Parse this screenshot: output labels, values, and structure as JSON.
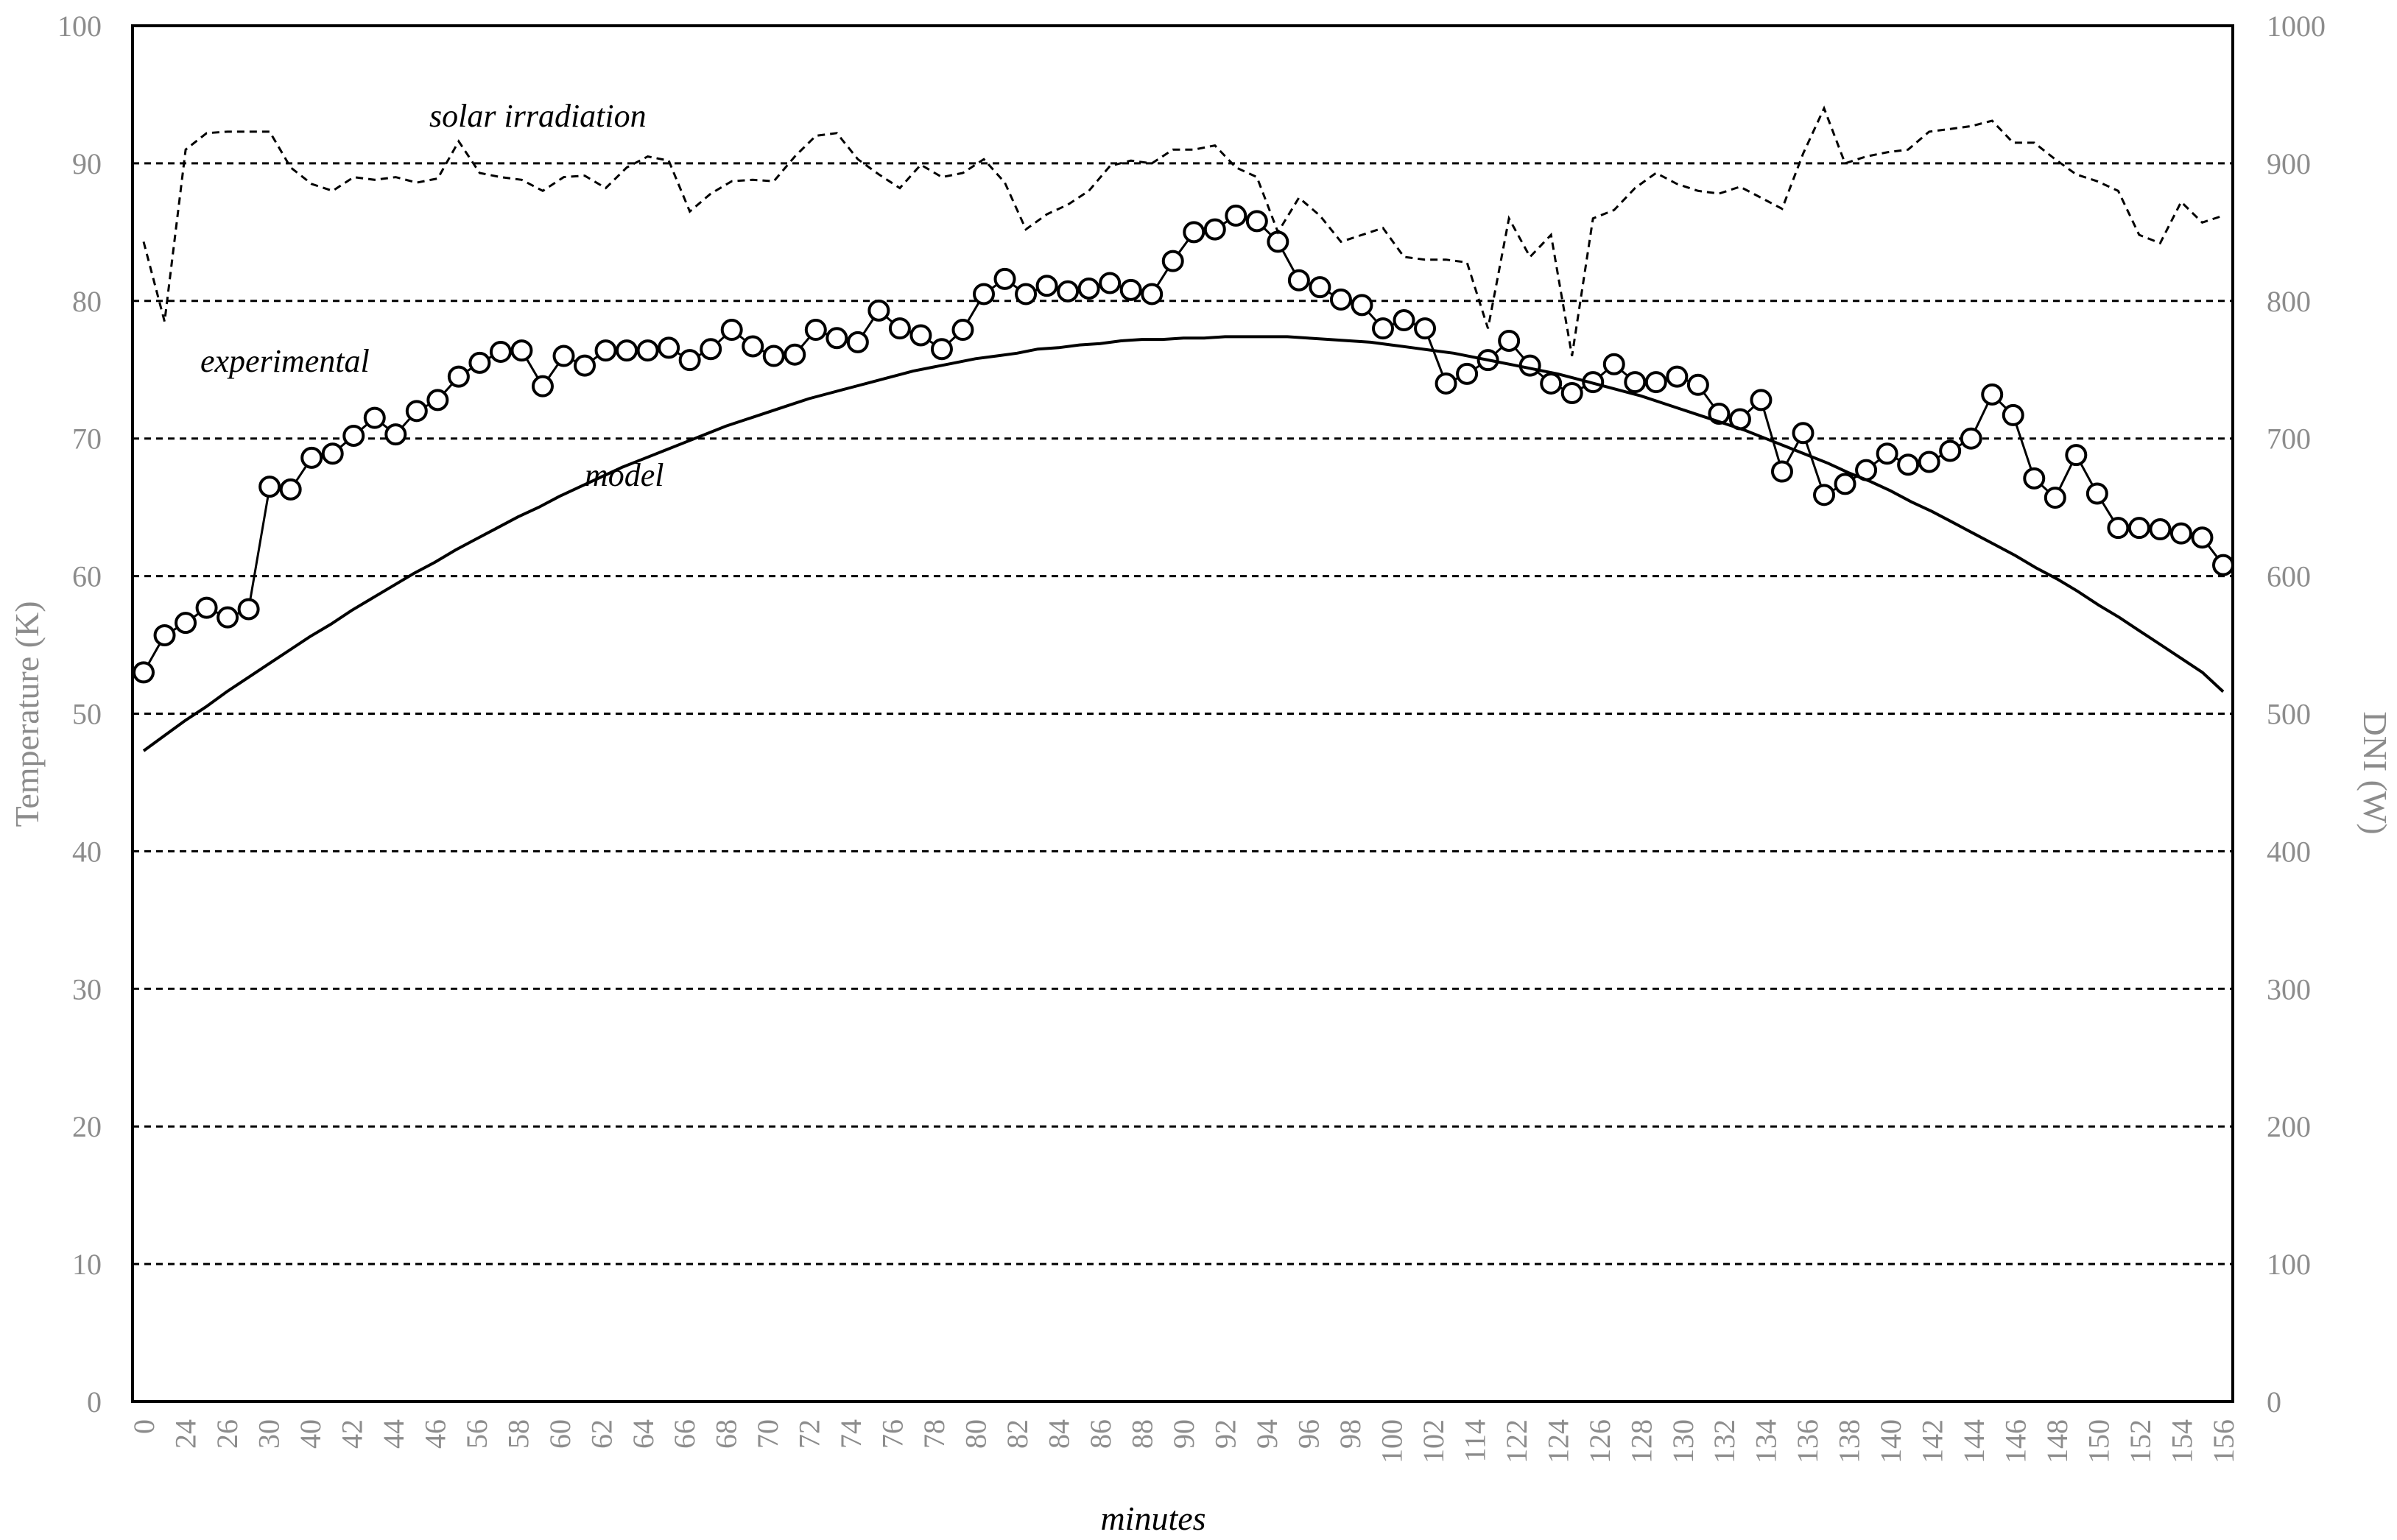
{
  "chart_data": {
    "type": "line",
    "title": "",
    "xlabel": "minutes",
    "ylabel": "Temperature (K)",
    "y2label": "DNI (W)",
    "ylim": [
      0,
      100
    ],
    "y2lim": [
      0,
      1000
    ],
    "yticks": [
      "0",
      "10",
      "20",
      "30",
      "40",
      "50",
      "60",
      "70",
      "80",
      "90",
      "100"
    ],
    "y2ticks": [
      "0",
      "100",
      "200",
      "300",
      "400",
      "500",
      "600",
      "700",
      "800",
      "900",
      "1000"
    ],
    "xtick_labels": [
      "0",
      "24",
      "26",
      "30",
      "40",
      "42",
      "44",
      "46",
      "56",
      "58",
      "60",
      "62",
      "64",
      "66",
      "68",
      "70",
      "72",
      "74",
      "76",
      "78",
      "80",
      "82",
      "84",
      "86",
      "88",
      "90",
      "92",
      "94",
      "96",
      "98",
      "100",
      "102",
      "114",
      "122",
      "124",
      "126",
      "128",
      "130",
      "132",
      "134",
      "136",
      "138",
      "140",
      "142",
      "144",
      "146",
      "148",
      "150",
      "152",
      "154",
      "156"
    ],
    "grid": "horizontal dashed",
    "annotations": {
      "solar": "solar irradiation",
      "experimental": "experimental",
      "model": "model"
    },
    "colors": {
      "lines": "#000000",
      "tick_text": "#8c8c8c"
    },
    "series": [
      {
        "name": "experimental",
        "axis": "left",
        "style": "solid line with circle markers",
        "values": [
          53.0,
          55.7,
          56.6,
          57.7,
          57.0,
          57.6,
          66.5,
          66.3,
          68.6,
          68.9,
          70.2,
          71.5,
          70.3,
          72.0,
          72.8,
          74.5,
          75.5,
          76.3,
          76.4,
          73.8,
          76.0,
          75.3,
          76.4,
          76.4,
          76.4,
          76.6,
          75.7,
          76.5,
          77.9,
          76.7,
          76.0,
          76.1,
          77.9,
          77.3,
          77.0,
          79.3,
          78.0,
          77.5,
          76.5,
          77.9,
          80.5,
          81.6,
          80.5,
          81.1,
          80.7,
          80.9,
          81.3,
          80.8,
          80.5,
          82.9,
          85.0,
          85.2,
          86.2,
          85.8,
          84.3,
          81.5,
          81.0,
          80.1,
          79.7,
          78.0,
          78.6,
          78.0,
          74.0,
          74.7,
          75.7,
          77.1,
          75.3,
          74.0,
          73.3,
          74.1,
          75.4,
          74.1,
          74.1,
          74.5,
          73.9,
          71.8,
          71.4,
          72.8,
          67.6,
          70.4,
          65.9,
          66.7,
          67.7,
          68.9,
          68.1,
          68.3,
          69.1,
          70.0,
          73.2,
          71.7,
          67.1,
          65.7,
          68.8,
          66.0,
          63.5,
          63.5,
          63.4,
          63.1,
          62.8,
          60.8
        ]
      },
      {
        "name": "model",
        "axis": "left",
        "style": "solid line",
        "values": [
          47.3,
          48.4,
          49.5,
          50.5,
          51.6,
          52.6,
          53.6,
          54.6,
          55.6,
          56.5,
          57.5,
          58.4,
          59.3,
          60.2,
          61.0,
          61.9,
          62.7,
          63.5,
          64.3,
          65.0,
          65.8,
          66.5,
          67.2,
          67.9,
          68.5,
          69.1,
          69.7,
          70.3,
          70.9,
          71.4,
          71.9,
          72.4,
          72.9,
          73.3,
          73.7,
          74.1,
          74.5,
          74.9,
          75.2,
          75.5,
          75.8,
          76.0,
          76.2,
          76.5,
          76.6,
          76.8,
          76.9,
          77.1,
          77.2,
          77.2,
          77.3,
          77.3,
          77.4,
          77.4,
          77.4,
          77.4,
          77.3,
          77.2,
          77.1,
          77.0,
          76.8,
          76.6,
          76.4,
          76.2,
          75.9,
          75.6,
          75.3,
          75.0,
          74.7,
          74.3,
          73.9,
          73.5,
          73.1,
          72.6,
          72.1,
          71.6,
          71.1,
          70.6,
          70.0,
          69.4,
          68.8,
          68.2,
          67.5,
          66.9,
          66.2,
          65.4,
          64.7,
          63.9,
          63.1,
          62.3,
          61.5,
          60.6,
          59.8,
          58.9,
          57.9,
          57.0,
          56.0,
          55.0,
          54.0,
          53.0,
          51.6
        ]
      },
      {
        "name": "solar irradiation",
        "axis": "right",
        "style": "dashed line",
        "values": [
          843,
          785,
          910,
          922,
          923,
          923,
          923,
          897,
          885,
          880,
          890,
          888,
          890,
          886,
          889,
          916,
          893,
          890,
          888,
          880,
          890,
          891,
          882,
          897,
          905,
          902,
          865,
          878,
          887,
          888,
          887,
          905,
          920,
          922,
          903,
          892,
          882,
          899,
          890,
          893,
          903,
          886,
          852,
          863,
          870,
          880,
          898,
          902,
          900,
          910,
          910,
          913,
          897,
          890,
          850,
          875,
          862,
          843,
          848,
          853,
          832,
          830,
          830,
          828,
          780,
          860,
          832,
          848,
          760,
          860,
          866,
          882,
          893,
          885,
          880,
          878,
          883,
          875,
          867,
          907,
          940,
          900,
          905,
          908,
          910,
          923,
          925,
          927,
          931,
          915,
          915,
          903,
          892,
          887,
          880,
          848,
          842,
          872,
          857,
          862
        ]
      }
    ]
  }
}
